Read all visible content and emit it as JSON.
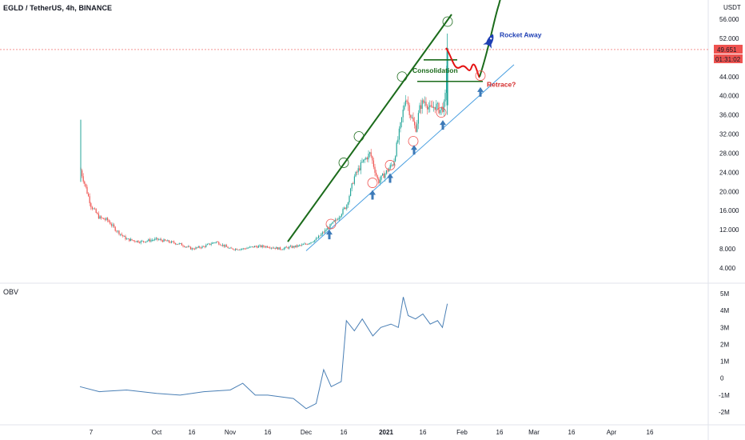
{
  "title": "EGLD / TetherUS, 4h, BINANCE",
  "currency": "USDT",
  "indicator_label": "OBV",
  "price_tag": "49.651",
  "countdown_tag": "01:31:02",
  "annotations": {
    "consolidation": "Consolidation",
    "retrace": "Retrace?",
    "rocket": "Rocket Away"
  },
  "colors": {
    "up": "#26a69a",
    "down": "#ef5350",
    "trend_green": "#1b6b1b",
    "support_line": "#4a9fe0",
    "arrow": "#3d7ab8",
    "obv_line": "#4a7fb5",
    "path_red": "#e41212",
    "label_green": "#1b6b1b",
    "label_red": "#d42a2a",
    "label_blue": "#1e3fb4",
    "tag_red": "#ef5350"
  },
  "chart_data": [
    {
      "type": "candlestick",
      "title": "EGLD / TetherUS, 4h, BINANCE",
      "ylabel": "USDT",
      "ylim": [
        2.5,
        58.5
      ],
      "y_ticks": [
        "56.000",
        "52.000",
        "48.000",
        "44.000",
        "40.000",
        "36.000",
        "32.000",
        "28.000",
        "24.000",
        "20.000",
        "16.000",
        "12.000",
        "8.000",
        "4.000"
      ],
      "x_ticks": [
        "7",
        "Oct",
        "16",
        "Nov",
        "16",
        "Dec",
        "16",
        "2021",
        "16",
        "Feb",
        "16",
        "Mar",
        "16",
        "Apr",
        "16"
      ],
      "x": [
        "Sep 06",
        "Sep 07",
        "Sep 10",
        "Sep 13",
        "Sep 16",
        "Sep 20",
        "Sep 25",
        "Oct 01",
        "Oct 06",
        "Oct 11",
        "Oct 16",
        "Oct 21",
        "Oct 26",
        "Nov 01",
        "Nov 06",
        "Nov 11",
        "Nov 16",
        "Nov 21",
        "Nov 24",
        "Nov 27",
        "Dec 01",
        "Dec 05",
        "Dec 09",
        "Dec 13",
        "Dec 17",
        "Dec 20",
        "Dec 23",
        "Dec 26",
        "Dec 29",
        "Jan 01",
        "Jan 04",
        "Jan 07",
        "Jan 09",
        "Jan 11",
        "Jan 13",
        "Jan 15",
        "Jan 17",
        "Jan 19",
        "Jan 21",
        "Jan 23",
        "Jan 25",
        "Jan 26"
      ],
      "close": [
        25,
        17,
        14.5,
        14,
        12,
        10,
        9.5,
        10,
        9.5,
        9,
        8,
        8.5,
        9.5,
        8,
        8,
        8.5,
        8.5,
        8,
        8.3,
        8.5,
        9,
        10,
        12,
        14,
        17,
        23,
        26,
        28,
        22,
        24,
        26,
        34,
        40,
        36,
        33,
        38,
        39,
        37,
        38,
        37,
        38,
        50
      ],
      "high_annotated": 35,
      "current_price": 49.651
    },
    {
      "type": "line",
      "title": "OBV",
      "ylim": [
        -2.5,
        5.5
      ],
      "y_ticks": [
        "5M",
        "4M",
        "3M",
        "2M",
        "1M",
        "0",
        "-1M",
        "-2M"
      ],
      "x": [
        "Sep 06",
        "Sep 10",
        "Sep 20",
        "Oct 01",
        "Oct 11",
        "Oct 21",
        "Nov 01",
        "Nov 06",
        "Nov 11",
        "Nov 16",
        "Nov 21",
        "Nov 26",
        "Dec 01",
        "Dec 05",
        "Dec 08",
        "Dec 11",
        "Dec 15",
        "Dec 17",
        "Dec 20",
        "Dec 23",
        "Dec 27",
        "Dec 30",
        "Jan 03",
        "Jan 06",
        "Jan 08",
        "Jan 10",
        "Jan 13",
        "Jan 16",
        "Jan 19",
        "Jan 22",
        "Jan 24",
        "Jan 26"
      ],
      "values": [
        -0.5,
        -0.8,
        -0.7,
        -0.9,
        -1.0,
        -0.8,
        -0.7,
        -0.3,
        -1.0,
        -1.0,
        -1.1,
        -1.2,
        -1.8,
        -1.5,
        0.5,
        -0.5,
        -0.2,
        3.4,
        2.8,
        3.5,
        2.5,
        3.0,
        3.2,
        3.0,
        4.8,
        3.7,
        3.5,
        3.8,
        3.2,
        3.4,
        3.0,
        4.4
      ]
    }
  ]
}
